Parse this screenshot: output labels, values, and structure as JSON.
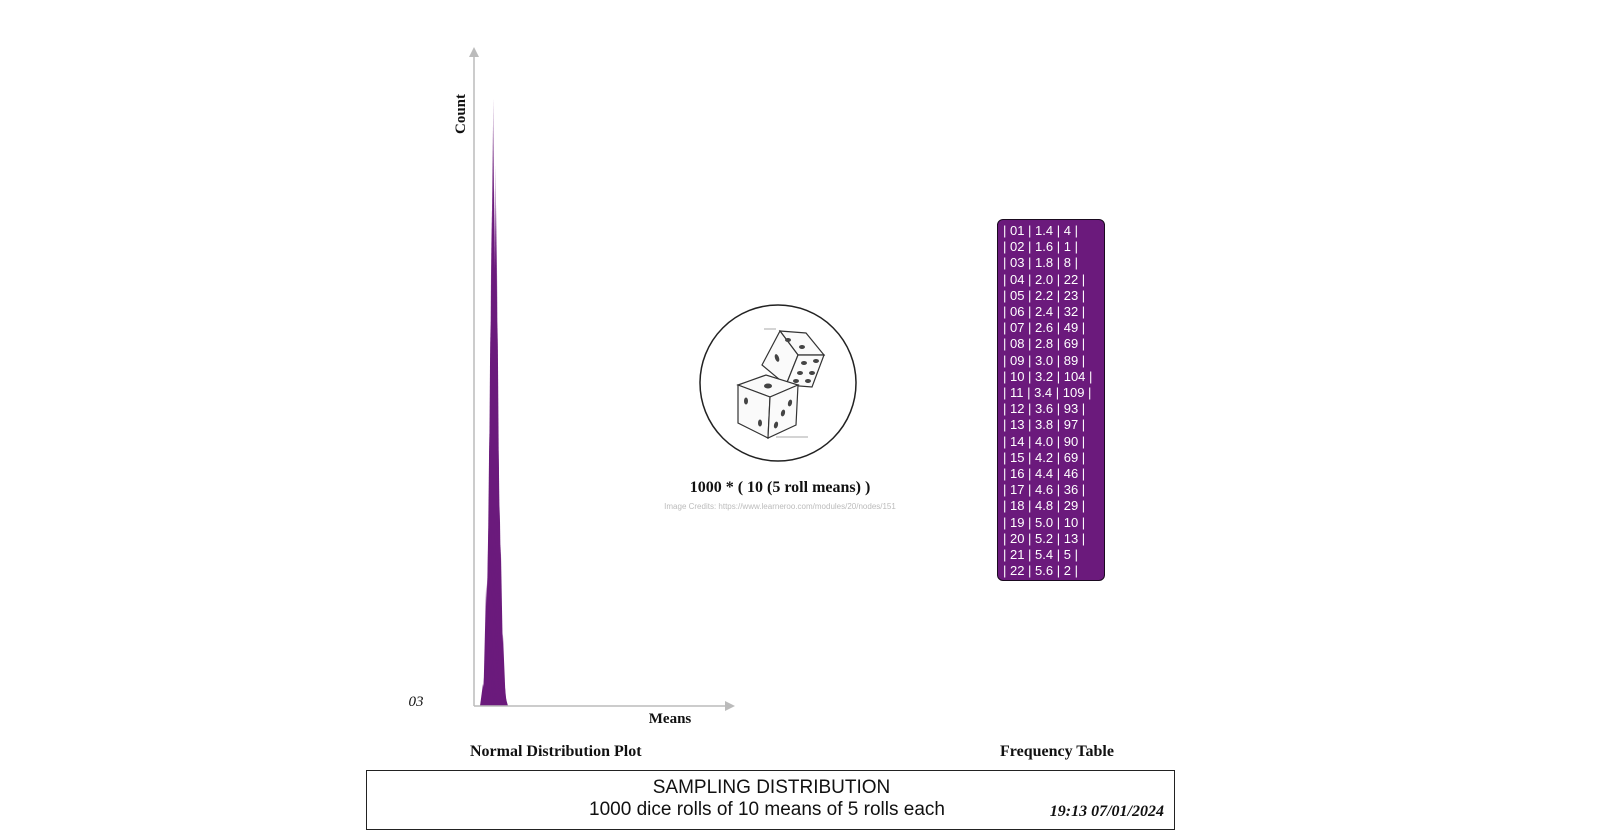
{
  "chart_data": {
    "type": "area",
    "xlabel": "Means",
    "ylabel": "Count",
    "y_tick_label": "03",
    "categories": [
      "1.4",
      "1.6",
      "1.8",
      "2.0",
      "2.2",
      "2.4",
      "2.6",
      "2.8",
      "3.0",
      "3.2",
      "3.4",
      "3.6",
      "3.8",
      "4.0",
      "4.2",
      "4.4",
      "4.6",
      "4.8",
      "5.0",
      "5.2",
      "5.4",
      "5.6"
    ],
    "values": [
      4,
      1,
      8,
      22,
      23,
      32,
      49,
      69,
      89,
      104,
      109,
      93,
      97,
      90,
      69,
      46,
      36,
      29,
      10,
      13,
      5,
      2
    ],
    "color": "#6b1a7c"
  },
  "plot_caption": "Normal Distribution Plot",
  "table_caption": "Frequency Table",
  "dice": {
    "icon": "dice-icon",
    "label": "1000 * ( 10 (5 roll means) )",
    "credits": "Image Credits: https://www.learneroo.com/modules/20/nodes/151"
  },
  "frequency_table": {
    "rows": [
      "| 01 | 1.4 | 4 |",
      "| 02 | 1.6 | 1 |",
      "| 03 | 1.8 | 8 |",
      "| 04 | 2.0 | 22 |",
      "| 05 | 2.2 | 23 |",
      "| 06 | 2.4 | 32 |",
      "| 07 | 2.6 | 49 |",
      "| 08 | 2.8 | 69 |",
      "| 09 | 3.0 | 89 |",
      "| 10 | 3.2 | 104 |",
      "| 11 | 3.4 | 109 |",
      "| 12 | 3.6 | 93 |",
      "| 13 | 3.8 | 97 |",
      "| 14 | 4.0 | 90 |",
      "| 15 | 4.2 | 69 |",
      "| 16 | 4.4 | 46 |",
      "| 17 | 4.6 | 36 |",
      "| 18 | 4.8 | 29 |",
      "| 19 | 5.0 | 10 |",
      "| 20 | 5.2 | 13 |",
      "| 21 | 5.4 | 5 |",
      "| 22 | 5.6 | 2 |"
    ]
  },
  "footer": {
    "title": "SAMPLING DISTRIBUTION",
    "subtitle": "1000 dice rolls of 10 means of 5 rolls each",
    "timestamp": "19:13 07/01/2024"
  }
}
